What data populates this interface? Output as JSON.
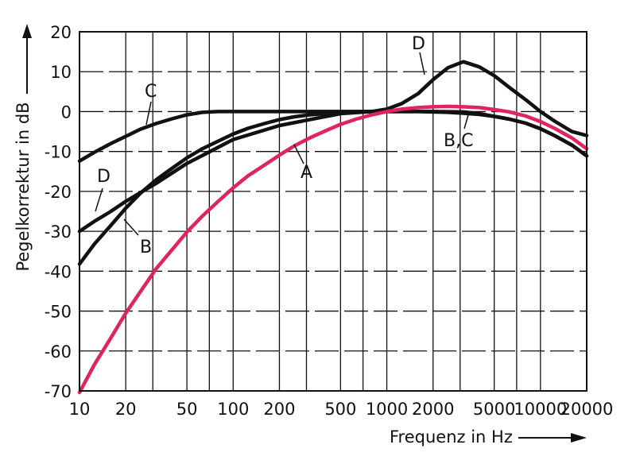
{
  "chart_data": {
    "type": "line",
    "xlabel": "Frequenz in Hz",
    "ylabel": "Pegelkorrektur in dB",
    "x_scale": "log",
    "xlim": [
      10,
      20000
    ],
    "ylim": [
      -70,
      20
    ],
    "x_ticks": [
      10,
      20,
      50,
      100,
      200,
      500,
      1000,
      2000,
      5000,
      10000,
      20000
    ],
    "x_tick_labels": [
      "10",
      "20",
      "50",
      "100",
      "200",
      "500",
      "1000",
      "2000",
      "5000",
      "10000",
      "20000"
    ],
    "y_ticks": [
      20,
      10,
      0,
      -10,
      -20,
      -30,
      -40,
      -50,
      -60,
      -70
    ],
    "y_tick_labels": [
      "20",
      "10",
      "0",
      "-10",
      "-20",
      "-30",
      "-40",
      "-50",
      "-60",
      "-70"
    ],
    "grid": true,
    "x_gridlines": [
      10,
      20,
      30,
      50,
      70,
      100,
      200,
      300,
      500,
      700,
      1000,
      2000,
      3000,
      5000,
      7000,
      10000,
      20000
    ],
    "series": [
      {
        "name": "A",
        "color": "#e0245e",
        "x": [
          10,
          12.5,
          16,
          20,
          31.5,
          50,
          63,
          80,
          100,
          125,
          160,
          200,
          250,
          315,
          400,
          500,
          630,
          800,
          1000,
          1250,
          1600,
          2000,
          2500,
          3150,
          4000,
          5000,
          6300,
          8000,
          10000,
          12500,
          16000,
          20000
        ],
        "y": [
          -70.4,
          -63.4,
          -56.7,
          -50.5,
          -39.4,
          -30.2,
          -26.2,
          -22.5,
          -19.1,
          -16.1,
          -13.4,
          -10.9,
          -8.6,
          -6.6,
          -4.8,
          -3.2,
          -1.9,
          -0.8,
          0.0,
          0.6,
          1.0,
          1.2,
          1.3,
          1.2,
          1.0,
          0.5,
          -0.1,
          -1.1,
          -2.5,
          -4.3,
          -6.6,
          -9.3
        ]
      },
      {
        "name": "B",
        "color": "#111111",
        "x": [
          10,
          12.5,
          16,
          20,
          25,
          31.5,
          40,
          50,
          63,
          80,
          100,
          125,
          160,
          200,
          250,
          315,
          400,
          500,
          630,
          800,
          1000,
          1250,
          1600,
          2000,
          2500,
          3150,
          4000,
          5000,
          6300,
          8000,
          10000,
          12500,
          16000,
          20000
        ],
        "y": [
          -38.2,
          -33.2,
          -28.5,
          -24.2,
          -20.4,
          -17.1,
          -14.2,
          -11.6,
          -9.3,
          -7.4,
          -5.6,
          -4.2,
          -3.0,
          -2.0,
          -1.3,
          -0.8,
          -0.5,
          -0.3,
          -0.1,
          0.0,
          0.0,
          0.0,
          0.0,
          -0.1,
          -0.2,
          -0.4,
          -0.7,
          -1.2,
          -1.9,
          -2.9,
          -4.3,
          -6.1,
          -8.4,
          -11.1
        ]
      },
      {
        "name": "C",
        "color": "#111111",
        "x": [
          10,
          12.5,
          16,
          20,
          25,
          31.5,
          40,
          50,
          63,
          80,
          100,
          200,
          500,
          1000,
          2000,
          3150,
          4000,
          5000,
          6300,
          8000,
          10000,
          12500,
          16000,
          20000
        ],
        "y": [
          -12.4,
          -10.2,
          -8.0,
          -6.2,
          -4.4,
          -3.0,
          -1.8,
          -0.8,
          -0.2,
          0.0,
          0.0,
          0.0,
          0.0,
          0.0,
          0.0,
          -0.1,
          -0.5,
          -1.2,
          -1.9,
          -2.9,
          -4.3,
          -6.1,
          -8.4,
          -11.1
        ]
      },
      {
        "name": "D",
        "color": "#111111",
        "x": [
          10,
          12.5,
          16,
          20,
          31.5,
          50,
          63,
          100,
          200,
          500,
          800,
          1000,
          1250,
          1600,
          2000,
          2500,
          3150,
          4000,
          5000,
          6300,
          8000,
          10000,
          12500,
          16000,
          20000
        ],
        "y": [
          -30.0,
          -27.5,
          -25.0,
          -22.5,
          -18.0,
          -13.0,
          -11.0,
          -7.0,
          -3.5,
          -0.5,
          0.0,
          0.6,
          2.0,
          4.5,
          8.0,
          11.0,
          12.5,
          11.2,
          9.0,
          6.0,
          3.0,
          0.0,
          -2.5,
          -5.0,
          -6.0
        ]
      }
    ],
    "annotations": [
      {
        "text": "A"
      },
      {
        "text": "B"
      },
      {
        "text": "C"
      },
      {
        "text": "D"
      },
      {
        "text": "D"
      },
      {
        "text": "B,C"
      }
    ]
  }
}
